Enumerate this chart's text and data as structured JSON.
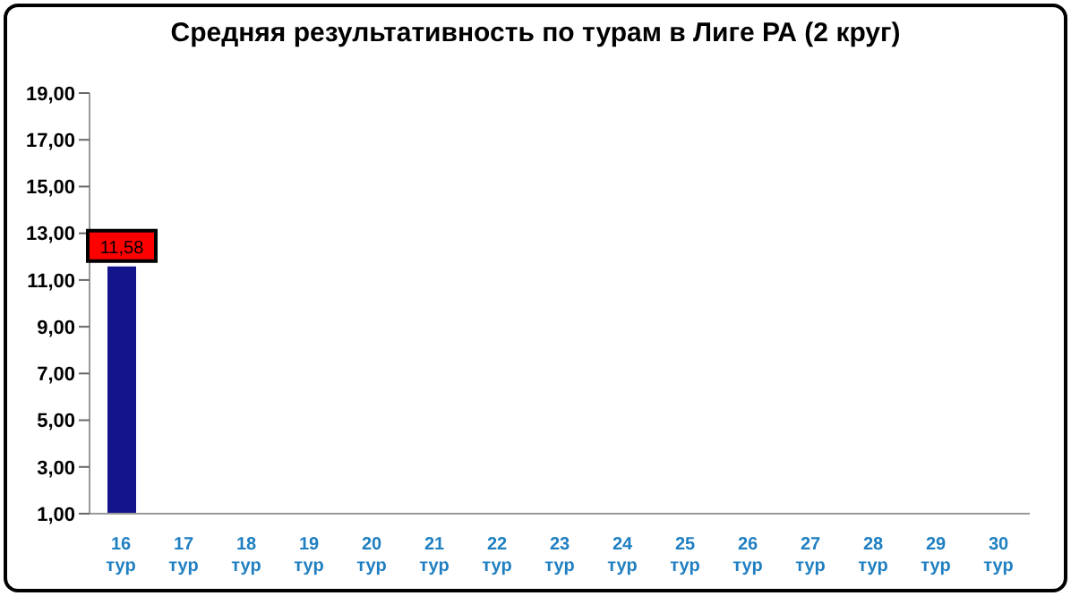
{
  "chart_data": {
    "type": "bar",
    "title": "Средняя результативность по турам в Лиге РА (2 круг)",
    "categories": [
      "16 тур",
      "17 тур",
      "18 тур",
      "19 тур",
      "20 тур",
      "21 тур",
      "22 тур",
      "23 тур",
      "24 тур",
      "25 тур",
      "26 тур",
      "27 тур",
      "28 тур",
      "29 тур",
      "30 тур"
    ],
    "series": [
      {
        "color": "#14148c",
        "values": [
          11.58,
          null,
          null,
          null,
          null,
          null,
          null,
          null,
          null,
          null,
          null,
          null,
          null,
          null,
          null
        ],
        "value_labels": [
          "11,58",
          null,
          null,
          null,
          null,
          null,
          null,
          null,
          null,
          null,
          null,
          null,
          null,
          null,
          null
        ]
      }
    ],
    "ylim": [
      1,
      19
    ],
    "yticks": [
      {
        "value": 1,
        "label": "1,00"
      },
      {
        "value": 3,
        "label": "3,00"
      },
      {
        "value": 5,
        "label": "5,00"
      },
      {
        "value": 7,
        "label": "7,00"
      },
      {
        "value": 9,
        "label": "9,00"
      },
      {
        "value": 11,
        "label": "11,00"
      },
      {
        "value": 13,
        "label": "13,00"
      },
      {
        "value": 15,
        "label": "15,00"
      },
      {
        "value": 17,
        "label": "17,00"
      },
      {
        "value": 19,
        "label": "19,00"
      }
    ],
    "grid": false,
    "legend": false
  }
}
